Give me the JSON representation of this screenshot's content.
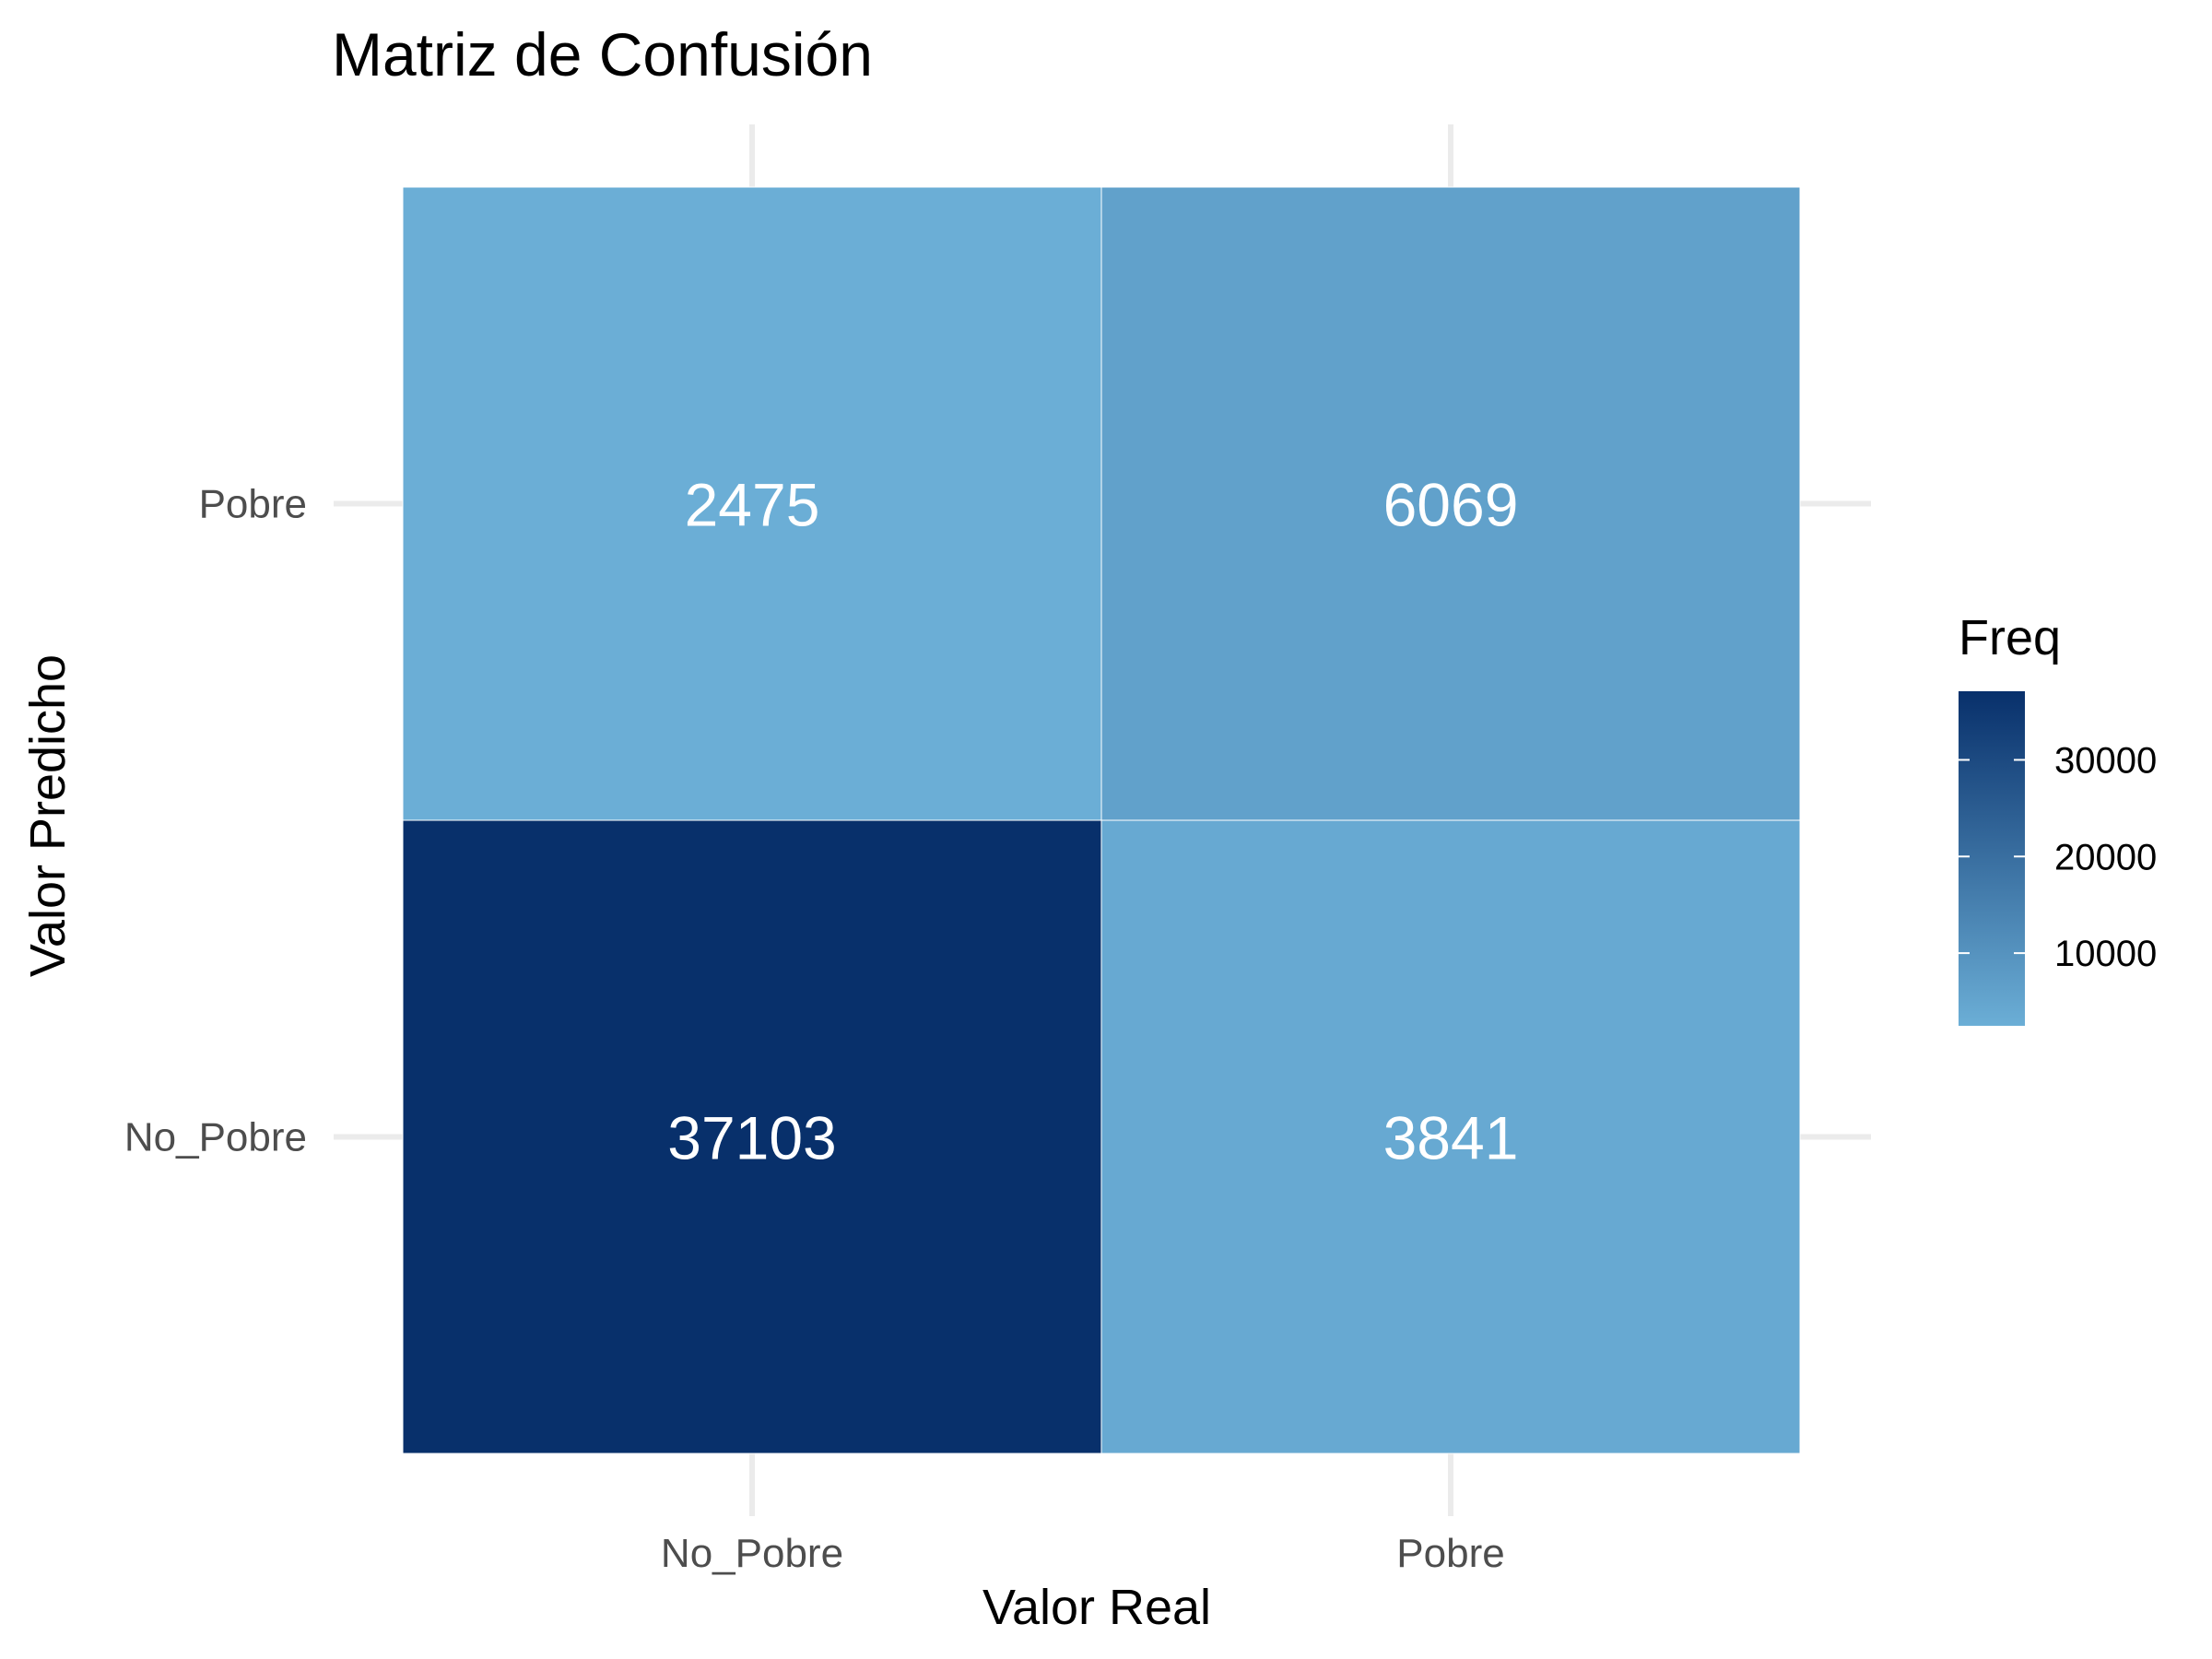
{
  "chart_data": {
    "type": "heatmap",
    "title": "Matriz de Confusión",
    "xlabel": "Valor Real",
    "ylabel": "Valor Predicho",
    "x_categories": [
      "No_Pobre",
      "Pobre"
    ],
    "y_categories": [
      "No_Pobre",
      "Pobre"
    ],
    "cells": [
      {
        "real": "No_Pobre",
        "predicho": "Pobre",
        "value": 2475
      },
      {
        "real": "Pobre",
        "predicho": "Pobre",
        "value": 6069
      },
      {
        "real": "No_Pobre",
        "predicho": "No_Pobre",
        "value": 37103
      },
      {
        "real": "Pobre",
        "predicho": "No_Pobre",
        "value": 3841
      }
    ],
    "legend": {
      "title": "Freq",
      "ticks": [
        10000,
        20000,
        30000
      ],
      "range": [
        2475,
        37103
      ],
      "low_color": "#6baed6",
      "high_color": "#08306b"
    },
    "grid": true,
    "legend_position": "right"
  }
}
